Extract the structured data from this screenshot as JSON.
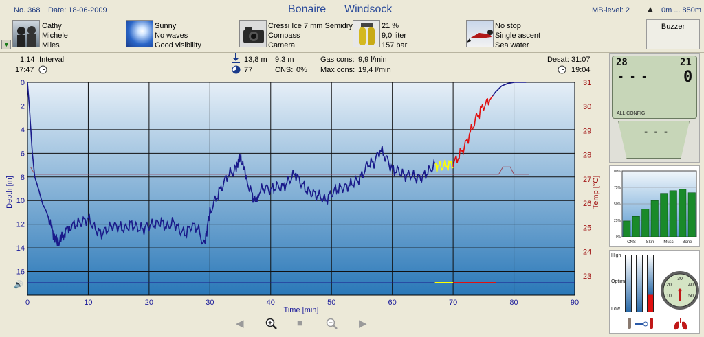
{
  "header": {
    "dive_no": "No. 368",
    "date": "Date: 18-06-2009",
    "location": "Bonaire",
    "site": "Windsock",
    "mb_level": "MB-level: 2",
    "altitude": "0m ... 850m",
    "buzzer": "Buzzer"
  },
  "info": {
    "buddies": [
      "Cathy",
      "Michele",
      "Miles"
    ],
    "weather": [
      "Sunny",
      "No waves",
      "Good visibility"
    ],
    "equipment": [
      "Cressi Ice 7 mm Semidry",
      "Compass",
      "Camera"
    ],
    "tank": [
      "21 %",
      "9,0 liter",
      "157 bar"
    ],
    "deco": [
      "No stop",
      "Single ascent",
      "Sea water"
    ]
  },
  "stats": {
    "interval_time": "1:14",
    "interval_label": ":Interval",
    "start_time": "17:47",
    "max_depth": "13,8 m",
    "avg_depth": "9,3 m",
    "cns_pct_value": "77",
    "cns_label": "CNS:",
    "cns_value": "0%",
    "gas_cons_label": "Gas cons:",
    "gas_cons_value": "9,9 l/min",
    "max_cons_label": "Max cons:",
    "max_cons_value": "19,4 l/min",
    "desat_label": "Desat:",
    "desat_value": "31:07",
    "end_time": "19:04"
  },
  "chart_data": {
    "type": "line",
    "xlabel": "Time [min]",
    "ylabel": "Depth [m]",
    "y2label": "Temp [°C]",
    "xlim": [
      0,
      90
    ],
    "ylim": [
      18,
      0
    ],
    "y2lim": [
      22.2,
      31
    ],
    "x_ticks": [
      0,
      10,
      20,
      30,
      40,
      50,
      60,
      70,
      80,
      90
    ],
    "y_ticks": [
      0,
      2,
      4,
      6,
      8,
      10,
      12,
      14,
      16
    ],
    "y2_ticks": [
      23,
      24,
      25,
      26,
      27,
      28,
      29,
      30,
      31
    ],
    "colors": {
      "depth": "#1a1a8a",
      "temp": "#9a4a5a",
      "ascent_ok": "#ffff00",
      "ascent_fast": "#e01010",
      "bg_top": "#e6eff7",
      "bg_bottom": "#2a78b8"
    },
    "series": [
      {
        "values_desc": "depth",
        "x": [
          0,
          0.3,
          0.8,
          1.2,
          1.8,
          2.5,
          3,
          3.5,
          4,
          4.5,
          5,
          5.5,
          6,
          6.5,
          7,
          8,
          9,
          10,
          11,
          12,
          13,
          14,
          15,
          16,
          17,
          18,
          19,
          20,
          21,
          22,
          23,
          24,
          25,
          26,
          27,
          28,
          29,
          29.5,
          30,
          31,
          32,
          33,
          34,
          34.5,
          35,
          35.5,
          36,
          37,
          37.5,
          38,
          39,
          40,
          41,
          42,
          43,
          44,
          45,
          46,
          47,
          48,
          49,
          50,
          51,
          52,
          53,
          54,
          55,
          56,
          57,
          58,
          59,
          60,
          61,
          62,
          63,
          64,
          65,
          66,
          67,
          68,
          69,
          70,
          71,
          72,
          73,
          74,
          75,
          76,
          77,
          78,
          79,
          80,
          81,
          82
        ],
        "values": [
          0,
          2,
          6,
          8,
          9,
          10.3,
          10.8,
          11.5,
          12.5,
          13,
          13.6,
          13.3,
          12.8,
          12.5,
          12.2,
          12,
          11.8,
          11.5,
          12.3,
          12.8,
          12.5,
          12.1,
          12.2,
          12.4,
          12,
          12.3,
          12.4,
          12.1,
          12,
          11.8,
          12.3,
          11.8,
          12.5,
          12.8,
          12.1,
          12.3,
          13.8,
          12.5,
          11,
          9.8,
          8.8,
          7.8,
          7.5,
          6.8,
          6.4,
          7,
          8.2,
          9.6,
          10.2,
          9.3,
          8.9,
          9.1,
          8.8,
          8.9,
          8.3,
          7.7,
          8.5,
          9.2,
          9.4,
          9.6,
          10,
          9.4,
          9,
          8.9,
          8.7,
          8.4,
          7.9,
          6.9,
          6.8,
          5.7,
          6.4,
          7.4,
          7.5,
          7.9,
          7.8,
          8.1,
          8.0,
          7.5,
          7.0,
          7.1,
          7.0,
          6.9,
          6.2,
          5.3,
          4.0,
          2.8,
          2.0,
          1.5,
          0.8,
          0.3,
          0.1,
          0.0,
          0.0,
          0.0
        ]
      },
      {
        "values_desc": "temperature",
        "x": [
          0.5,
          1.2,
          77.5,
          78.2,
          79.4,
          80.0,
          82.5
        ],
        "values": [
          27.5,
          27.2,
          27.2,
          27.5,
          27.5,
          27.2,
          27.2
        ]
      }
    ],
    "ascent_speed_bar": [
      {
        "x0": 67,
        "x1": 70,
        "color": "#ffff00"
      },
      {
        "x0": 70,
        "x1": 77,
        "color": "#e01010"
      }
    ]
  },
  "side": {
    "lcd_top_left": "28",
    "lcd_top_right": "21",
    "lcd_dashes": "- - -",
    "lcd_big_right": "0",
    "lcd_lbl_left": "ALL CONFIG",
    "lcd_lbl_right": "",
    "lcd2_dashes": "- - -",
    "tissue_chart": {
      "type": "bar",
      "categories": [
        "CNS",
        "Skin",
        "Musc",
        "Bone"
      ],
      "y_ticks": [
        "100%",
        "75%",
        "50%",
        "25%",
        "0%"
      ],
      "values": [
        24,
        31,
        42,
        55,
        66,
        70,
        72,
        67
      ]
    },
    "gauge_labels": [
      "30",
      "20",
      "40",
      "10",
      "50"
    ],
    "gauge_bar_labels": [
      "High",
      "Optimal",
      "Low"
    ]
  },
  "nav": {
    "prev": "◀",
    "zoom_in": "+",
    "stop": "■",
    "zoom_out": "-",
    "next": "▶"
  }
}
